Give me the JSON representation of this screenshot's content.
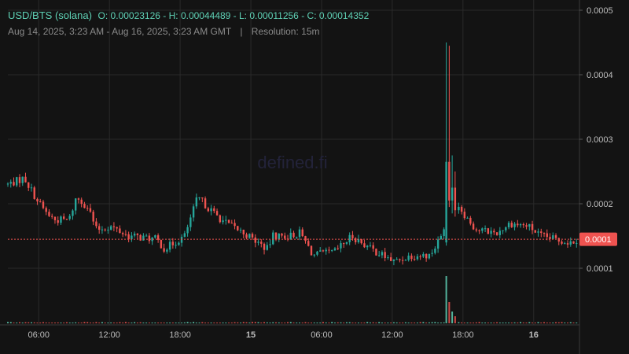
{
  "header": {
    "pair": "USD/BTS (solana)",
    "ohlc": "O: 0.00023126 - H: 0.00044489 - L: 0.00011256 - C: 0.00014352",
    "range": "Aug 14, 2025, 3:23 AM - Aug 16, 2025, 3:23 AM GMT",
    "separator": "|",
    "resolution": "Resolution: 15m"
  },
  "watermark": "defined.fi",
  "colors": {
    "up": "#26a69a",
    "down": "#ef5350",
    "price_tag": "#ef5350",
    "grid": "#2a2a2a",
    "axis_text": "#bdbdbd",
    "header_text": "#5fd1b5"
  },
  "chart_data": {
    "type": "candlestick",
    "title": "USD/BTS (solana)",
    "ylim": [
      0,
      0.0005
    ],
    "y_ticks": [
      {
        "value": 0.0005,
        "label": "0.0005"
      },
      {
        "value": 0.0004,
        "label": "0.0004"
      },
      {
        "value": 0.0003,
        "label": "0.0003"
      },
      {
        "value": 0.0002,
        "label": "0.0002"
      },
      {
        "value": 0.0001,
        "label": "0.0001"
      }
    ],
    "x_ticks": [
      {
        "hours": 2.617,
        "label": "06:00",
        "bold": false
      },
      {
        "hours": 8.617,
        "label": "12:00",
        "bold": false
      },
      {
        "hours": 14.617,
        "label": "18:00",
        "bold": false
      },
      {
        "hours": 20.617,
        "label": "15",
        "bold": true
      },
      {
        "hours": 26.617,
        "label": "06:00",
        "bold": false
      },
      {
        "hours": 32.617,
        "label": "12:00",
        "bold": false
      },
      {
        "hours": 38.617,
        "label": "18:00",
        "bold": false
      },
      {
        "hours": 44.617,
        "label": "16",
        "bold": true
      }
    ],
    "x_range_hours": [
      0,
      48.5
    ],
    "current_price": {
      "value": 0.000145,
      "label": "0.0001"
    },
    "anchors": [
      {
        "h": 0,
        "p": 0.00023
      },
      {
        "h": 1.4,
        "p": 0.00024
      },
      {
        "h": 2.5,
        "p": 0.000205
      },
      {
        "h": 3.3,
        "p": 0.000185
      },
      {
        "h": 4.0,
        "p": 0.000175
      },
      {
        "h": 5.2,
        "p": 0.000175
      },
      {
        "h": 5.8,
        "p": 0.00021
      },
      {
        "h": 6.8,
        "p": 0.000195
      },
      {
        "h": 7.5,
        "p": 0.00016
      },
      {
        "h": 8.7,
        "p": 0.000165
      },
      {
        "h": 10.2,
        "p": 0.00015
      },
      {
        "h": 12.6,
        "p": 0.000145
      },
      {
        "h": 13.3,
        "p": 0.00013
      },
      {
        "h": 15.0,
        "p": 0.00015
      },
      {
        "h": 16.1,
        "p": 0.00021
      },
      {
        "h": 17.5,
        "p": 0.000185
      },
      {
        "h": 18.5,
        "p": 0.00017
      },
      {
        "h": 20.0,
        "p": 0.000155
      },
      {
        "h": 22.0,
        "p": 0.00013
      },
      {
        "h": 22.5,
        "p": 0.00015
      },
      {
        "h": 23.9,
        "p": 0.00015
      },
      {
        "h": 24.8,
        "p": 0.000155
      },
      {
        "h": 25.9,
        "p": 0.00012
      },
      {
        "h": 27.7,
        "p": 0.000125
      },
      {
        "h": 29.2,
        "p": 0.00015
      },
      {
        "h": 30.8,
        "p": 0.00013
      },
      {
        "h": 32.8,
        "p": 0.00011
      },
      {
        "h": 34.2,
        "p": 0.00012
      },
      {
        "h": 35.8,
        "p": 0.00012
      },
      {
        "h": 36.8,
        "p": 0.00015
      },
      {
        "h": 37.3,
        "p": 0.00019
      },
      {
        "h": 37.8,
        "p": 0.00021
      },
      {
        "h": 38.7,
        "p": 0.000185
      },
      {
        "h": 39.7,
        "p": 0.00016
      },
      {
        "h": 41.5,
        "p": 0.000155
      },
      {
        "h": 42.6,
        "p": 0.00017
      },
      {
        "h": 44.2,
        "p": 0.000165
      },
      {
        "h": 45.2,
        "p": 0.00015
      },
      {
        "h": 47.7,
        "p": 0.00014
      },
      {
        "h": 48.3,
        "p": 0.000145
      }
    ],
    "spikes": [
      {
        "h": 37.2,
        "open": 0.00014,
        "high": 0.00045,
        "low": 0.000135,
        "close": 0.000265,
        "vol": 1.0
      },
      {
        "h": 37.45,
        "open": 0.000265,
        "high": 0.000445,
        "low": 0.000195,
        "close": 0.000205,
        "vol": 0.45
      },
      {
        "h": 37.7,
        "open": 0.000205,
        "high": 0.000275,
        "low": 0.000185,
        "close": 0.000225,
        "vol": 0.25
      },
      {
        "h": 37.95,
        "open": 0.000225,
        "high": 0.00025,
        "low": 0.00018,
        "close": 0.00019,
        "vol": 0.15
      }
    ]
  }
}
